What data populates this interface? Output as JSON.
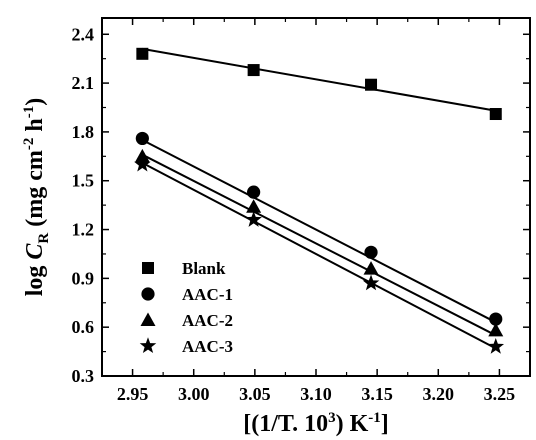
{
  "chart_data": {
    "type": "scatter",
    "title": "",
    "xlim": [
      2.925,
      3.275
    ],
    "ylim": [
      0.3,
      2.5
    ],
    "xticks": [
      "2.95",
      "3.00",
      "3.05",
      "3.10",
      "3.15",
      "3.20",
      "3.25"
    ],
    "yticks": [
      "0.3",
      "0.6",
      "0.9",
      "1.2",
      "1.5",
      "1.8",
      "2.1",
      "2.4"
    ],
    "xlabel": {
      "parts": [
        "[(1/T. 10",
        "3",
        ") K",
        "-1",
        "]"
      ]
    },
    "ylabel": {
      "parts": [
        "log ",
        "C",
        "R",
        " (mg cm",
        "-2",
        " h",
        "-1",
        ")"
      ]
    },
    "legend_position": "bottom-left",
    "series": [
      {
        "name": "Blank",
        "marker": "square",
        "x": [
          2.958,
          3.049,
          3.145,
          3.247
        ],
        "y": [
          2.28,
          2.18,
          2.09,
          1.91
        ],
        "fit": [
          [
            2.958,
            2.31
          ],
          [
            3.247,
            1.93
          ]
        ]
      },
      {
        "name": "AAC-1",
        "marker": "circle",
        "x": [
          2.958,
          3.049,
          3.145,
          3.247
        ],
        "y": [
          1.76,
          1.43,
          1.06,
          0.65
        ],
        "fit": [
          [
            2.958,
            1.75
          ],
          [
            3.247,
            0.63
          ]
        ]
      },
      {
        "name": "AAC-2",
        "marker": "triangle",
        "x": [
          2.958,
          3.049,
          3.145,
          3.247
        ],
        "y": [
          1.65,
          1.34,
          0.96,
          0.58
        ],
        "fit": [
          [
            2.958,
            1.66
          ],
          [
            3.247,
            0.55
          ]
        ]
      },
      {
        "name": "AAC-3",
        "marker": "star",
        "x": [
          2.958,
          3.049,
          3.145,
          3.247
        ],
        "y": [
          1.6,
          1.26,
          0.87,
          0.48
        ],
        "fit": [
          [
            2.958,
            1.61
          ],
          [
            3.247,
            0.47
          ]
        ]
      }
    ]
  }
}
